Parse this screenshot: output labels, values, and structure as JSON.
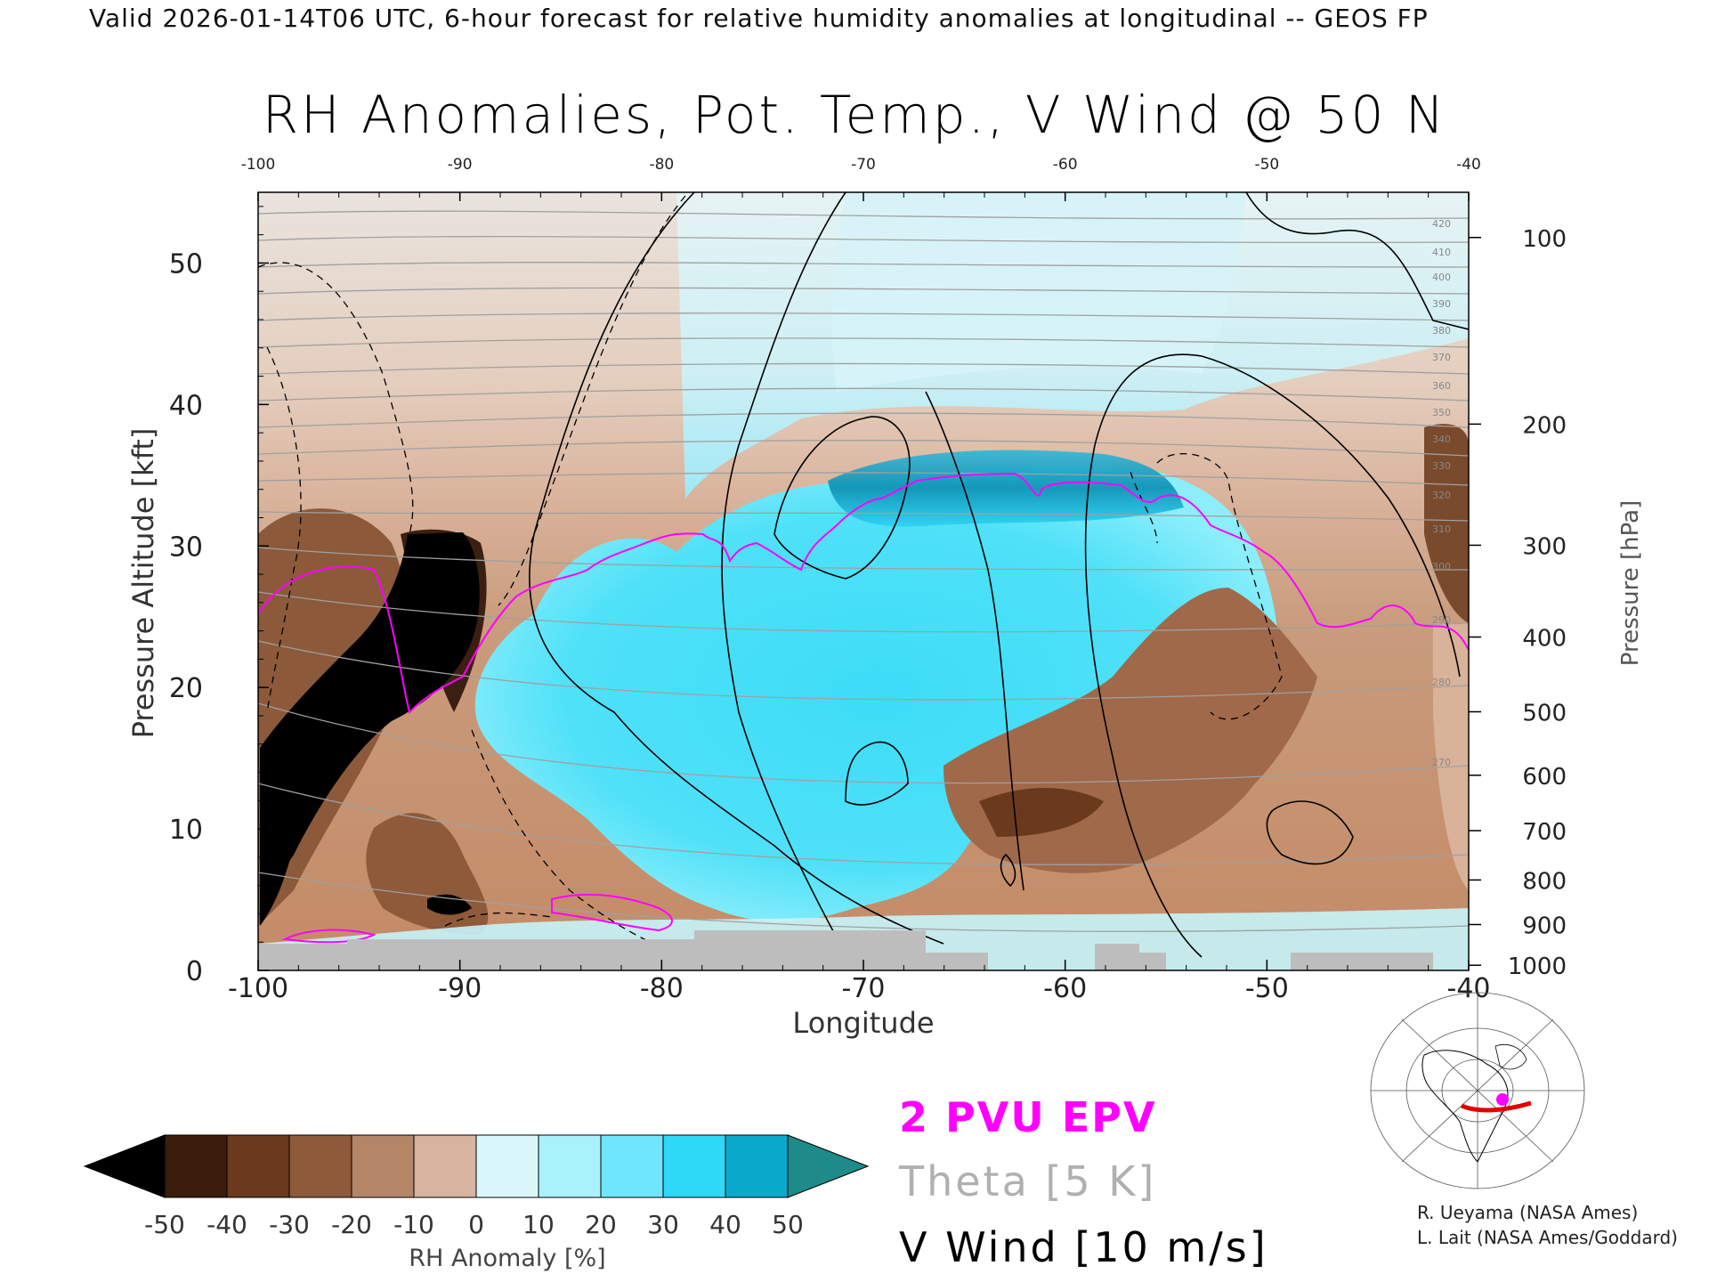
{
  "header": {
    "valid_line": "Valid 2026-01-14T06 UTC, 6-hour forecast for relative humidity anomalies at longitudinal -- GEOS FP"
  },
  "chart_data": {
    "type": "heatmap",
    "title": "RH Anomalies, Pot. Temp., V Wind @ 50 N",
    "xlabel": "Longitude",
    "ylabel_left": "Pressure Altitude [kft]",
    "ylabel_right": "Pressure [hPa]",
    "xlim": [
      -100,
      -40
    ],
    "ylim": [
      0,
      55
    ],
    "x_ticks": [
      "-100",
      "-90",
      "-80",
      "-70",
      "-60",
      "-50",
      "-40"
    ],
    "x_tick_values": [
      -100,
      -90,
      -80,
      -70,
      -60,
      -50,
      -40
    ],
    "y_ticks": [
      "0",
      "10",
      "20",
      "30",
      "40",
      "50"
    ],
    "y_tick_values": [
      0,
      10,
      20,
      30,
      40,
      50
    ],
    "pressure_ticks": [
      "100",
      "200",
      "300",
      "400",
      "500",
      "600",
      "700",
      "800",
      "900",
      "1000"
    ],
    "pressure_tick_values": [
      100,
      200,
      300,
      400,
      500,
      600,
      700,
      800,
      900,
      1000
    ],
    "theta_labels": [
      "420",
      "410",
      "400",
      "390",
      "380",
      "370",
      "360",
      "350",
      "340",
      "330",
      "320",
      "310",
      "300",
      "290",
      "280",
      "270"
    ],
    "colorbar": {
      "label": "RH Anomaly [%]",
      "ticks": [
        "-50",
        "-40",
        "-30",
        "-20",
        "-10",
        "0",
        "10",
        "20",
        "30",
        "40",
        "50"
      ],
      "tick_values": [
        -50,
        -40,
        -30,
        -20,
        -10,
        0,
        10,
        20,
        30,
        40,
        50
      ],
      "colors": [
        "#000000",
        "#3a1d0c",
        "#6b3a1c",
        "#8e5a3a",
        "#b58568",
        "#d6b4a0",
        "#edd9cc",
        "#d9f7fb",
        "#a9f1fb",
        "#6fe6fb",
        "#2ed8f7",
        "#0aa9cc",
        "#067f9c",
        "#1e8a8a"
      ]
    },
    "contours": {
      "epv_2pvu_color": "#ff00ff",
      "theta_color": "#a0a0a0",
      "vwind_color": "#000000"
    },
    "terrain_color": "#bdbdbd"
  },
  "legend": {
    "epv": "2 PVU EPV",
    "theta": "Theta [5 K]",
    "vwind": "V Wind [10 m/s]"
  },
  "credits": {
    "line1": "R. Ueyama (NASA Ames)",
    "line2": "L. Lait (NASA Ames/Goddard)"
  }
}
